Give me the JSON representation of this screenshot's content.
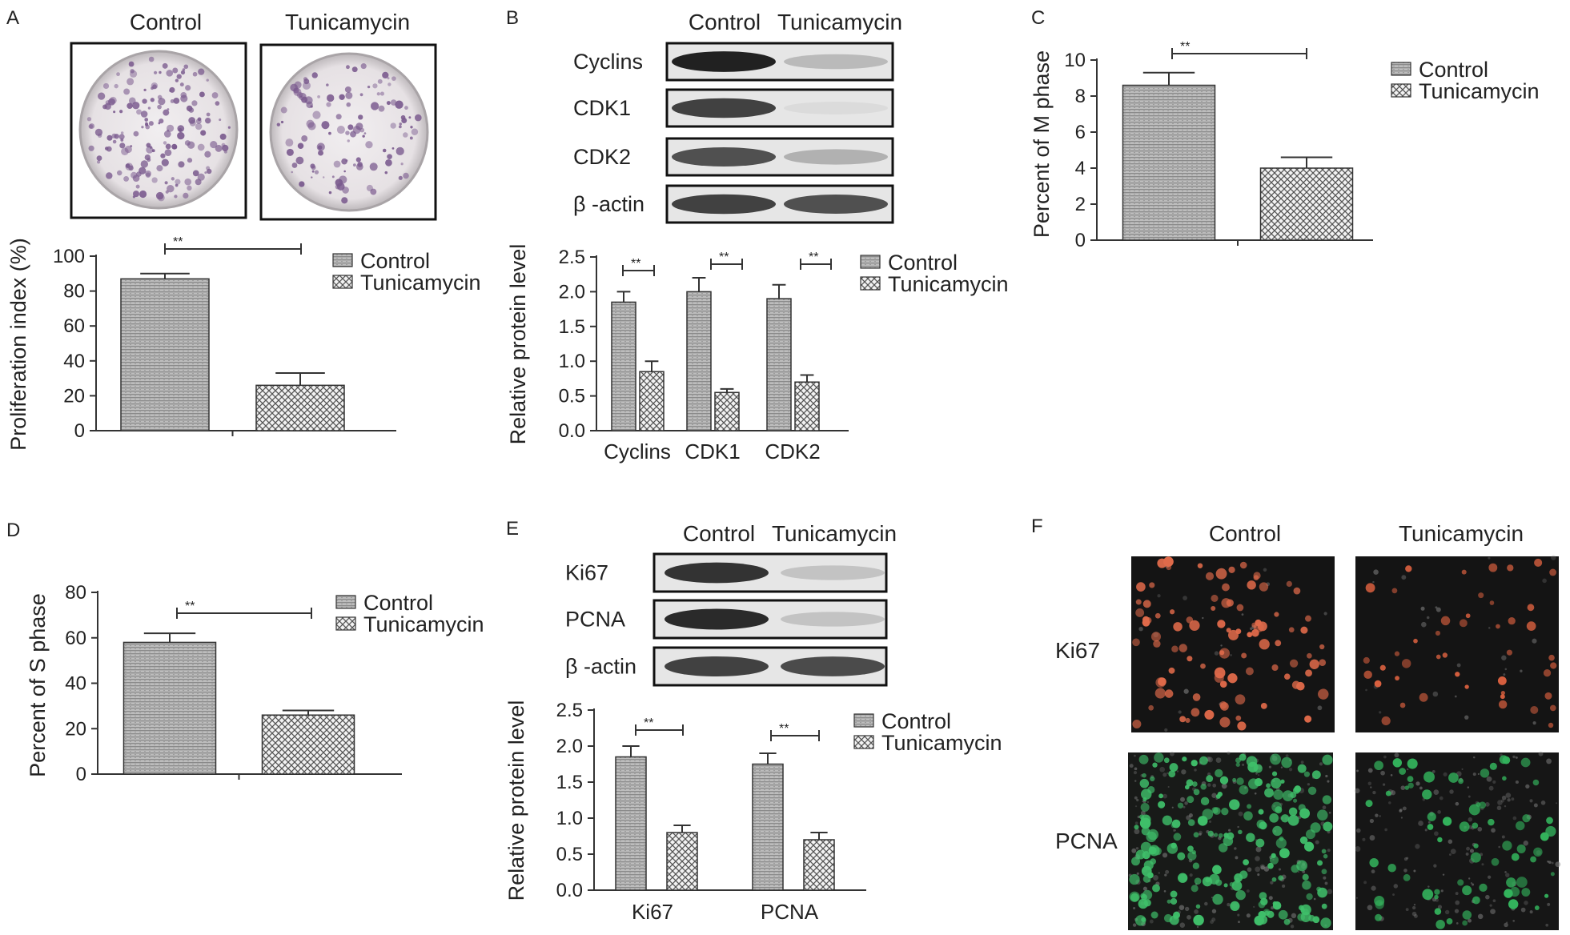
{
  "colors": {
    "bar_outline": "#333333",
    "control_fill": "#a8a8a8",
    "tunicamycin_fill": "#dcdcdc",
    "ki67_stain": "#e06a4a",
    "pcna_stain": "#3fbf6a",
    "fluor_bg": "#141414",
    "blot_bg": "#e6e6e6",
    "dish_purple": "#7a5a8e"
  },
  "panels": {
    "A": {
      "label": "A",
      "photo_cols": [
        "Control",
        "Tunicamycin"
      ]
    },
    "B": {
      "label": "B",
      "blot_cols": [
        "Control",
        "Tunicamycin"
      ],
      "blot_rows": [
        {
          "label": "Cyclins",
          "control": 0.95,
          "tunicamycin": 0.35
        },
        {
          "label": "CDK1",
          "control": 0.85,
          "tunicamycin": 0.12
        },
        {
          "label": "CDK2",
          "control": 0.8,
          "tunicamycin": 0.4
        },
        {
          "label": "β -actin",
          "control": 0.85,
          "tunicamycin": 0.8
        }
      ]
    },
    "C": {
      "label": "C"
    },
    "D": {
      "label": "D"
    },
    "E": {
      "label": "E",
      "blot_cols": [
        "Control",
        "Tunicamycin"
      ],
      "blot_rows": [
        {
          "label": "Ki67",
          "control": 0.9,
          "tunicamycin": 0.3
        },
        {
          "label": "PCNA",
          "control": 0.92,
          "tunicamycin": 0.3
        },
        {
          "label": "β -actin",
          "control": 0.85,
          "tunicamycin": 0.82
        }
      ]
    },
    "F": {
      "label": "F",
      "cols": [
        "Control",
        "Tunicamycin"
      ],
      "rows": [
        "Ki67",
        "PCNA"
      ]
    }
  },
  "chart_data": [
    {
      "panel": "A",
      "type": "bar",
      "categories": [
        ""
      ],
      "series": [
        {
          "name": "Control",
          "values": [
            87
          ],
          "errors": [
            3
          ]
        },
        {
          "name": "Tunicamycin",
          "values": [
            26
          ],
          "errors": [
            7
          ]
        }
      ],
      "ylabel": "Proliferation index (%)",
      "ylim": [
        0,
        100
      ],
      "yticks": [
        0,
        20,
        40,
        60,
        80,
        100
      ],
      "significance": [
        "**"
      ],
      "legend": "top-right"
    },
    {
      "panel": "B",
      "type": "bar",
      "categories": [
        "Cyclins",
        "CDK1",
        "CDK2"
      ],
      "series": [
        {
          "name": "Control",
          "values": [
            1.85,
            2.0,
            1.9
          ],
          "errors": [
            0.15,
            0.2,
            0.2
          ]
        },
        {
          "name": "Tunicamycin",
          "values": [
            0.85,
            0.55,
            0.7
          ],
          "errors": [
            0.15,
            0.05,
            0.1
          ]
        }
      ],
      "ylabel": "Relative protein level",
      "ylim": [
        0,
        2.5
      ],
      "yticks": [
        "0.0",
        "0.5",
        "1.0",
        "1.5",
        "2.0",
        "2.5"
      ],
      "significance": [
        "**",
        "**",
        "**"
      ],
      "legend": "top-right"
    },
    {
      "panel": "C",
      "type": "bar",
      "categories": [
        ""
      ],
      "series": [
        {
          "name": "Control",
          "values": [
            8.6
          ],
          "errors": [
            0.7
          ]
        },
        {
          "name": "Tunicamycin",
          "values": [
            4.0
          ],
          "errors": [
            0.6
          ]
        }
      ],
      "ylabel": "Percent of M phase",
      "ylim": [
        0,
        10
      ],
      "yticks": [
        0,
        2,
        4,
        6,
        8,
        10
      ],
      "significance": [
        "**"
      ],
      "legend": "top-right"
    },
    {
      "panel": "D",
      "type": "bar",
      "categories": [
        ""
      ],
      "series": [
        {
          "name": "Control",
          "values": [
            58
          ],
          "errors": [
            4
          ]
        },
        {
          "name": "Tunicamycin",
          "values": [
            26
          ],
          "errors": [
            2
          ]
        }
      ],
      "ylabel": "Percent of S phase",
      "ylim": [
        0,
        80
      ],
      "yticks": [
        0,
        20,
        40,
        60,
        80
      ],
      "significance": [
        "**"
      ],
      "legend": "top-right"
    },
    {
      "panel": "E",
      "type": "bar",
      "categories": [
        "Ki67",
        "PCNA"
      ],
      "series": [
        {
          "name": "Control",
          "values": [
            1.85,
            1.75
          ],
          "errors": [
            0.15,
            0.15
          ]
        },
        {
          "name": "Tunicamycin",
          "values": [
            0.8,
            0.7
          ],
          "errors": [
            0.1,
            0.1
          ]
        }
      ],
      "ylabel": "Relative protein level",
      "ylim": [
        0,
        2.5
      ],
      "yticks": [
        "0.0",
        "0.5",
        "1.0",
        "1.5",
        "2.0",
        "2.5"
      ],
      "significance": [
        "**",
        "**"
      ],
      "legend": "top-right"
    }
  ]
}
